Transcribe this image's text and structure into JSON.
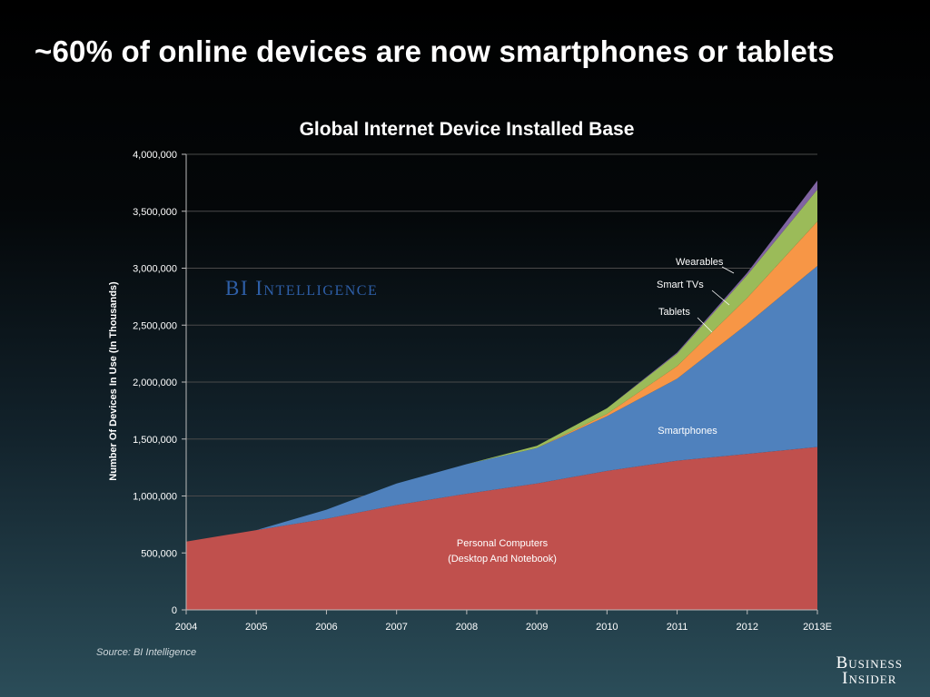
{
  "headline": "~60% of online devices are now smartphones or tablets",
  "watermark": "BI Intelligence",
  "source": "Source: BI Intelligence",
  "brand": {
    "line1": "Business",
    "line2": "Insider"
  },
  "colors": {
    "pc": "#c0504d",
    "smartphones": "#4f81bd",
    "tablets": "#f79646",
    "smart_tvs": "#9bbb59",
    "wearables": "#8064a2",
    "watermark": "#2e5fa8",
    "grid": "#4a4a4a"
  },
  "chart_data": {
    "type": "area",
    "stacked": true,
    "title": "Global Internet Device Installed Base",
    "xlabel": "",
    "ylabel": "Number Of Devices In Use (In Thousands)",
    "categories": [
      "2004",
      "2005",
      "2006",
      "2007",
      "2008",
      "2009",
      "2010",
      "2011",
      "2012",
      "2013E"
    ],
    "ylim": [
      0,
      4000000
    ],
    "yticks": [
      0,
      500000,
      1000000,
      1500000,
      2000000,
      2500000,
      3000000,
      3500000,
      4000000
    ],
    "ytick_labels": [
      "0",
      "500,000",
      "1,000,000",
      "1,500,000",
      "2,000,000",
      "2,500,000",
      "3,000,000",
      "3,500,000",
      "4,000,000"
    ],
    "grid": true,
    "series": [
      {
        "key": "pc",
        "name": "Personal Computers (Desktop And Notebook)",
        "values": [
          600000,
          700000,
          800000,
          920000,
          1020000,
          1110000,
          1220000,
          1310000,
          1370000,
          1430000
        ]
      },
      {
        "key": "smartphones",
        "name": "Smartphones",
        "values": [
          0,
          0,
          80000,
          190000,
          260000,
          310000,
          480000,
          720000,
          1140000,
          1590000
        ]
      },
      {
        "key": "tablets",
        "name": "Tablets",
        "values": [
          0,
          0,
          0,
          0,
          0,
          0,
          20000,
          110000,
          230000,
          390000
        ]
      },
      {
        "key": "smart_tvs",
        "name": "Smart TVs",
        "values": [
          0,
          0,
          0,
          0,
          0,
          20000,
          50000,
          110000,
          200000,
          280000
        ]
      },
      {
        "key": "wearables",
        "name": "Wearables",
        "values": [
          0,
          0,
          0,
          0,
          0,
          0,
          0,
          10000,
          20000,
          80000
        ]
      }
    ],
    "annotations": {
      "pc_line1": "Personal Computers",
      "pc_line2": "(Desktop And Notebook)",
      "smartphones": "Smartphones",
      "tablets": "Tablets",
      "smart_tvs": "Smart TVs",
      "wearables": "Wearables"
    }
  }
}
